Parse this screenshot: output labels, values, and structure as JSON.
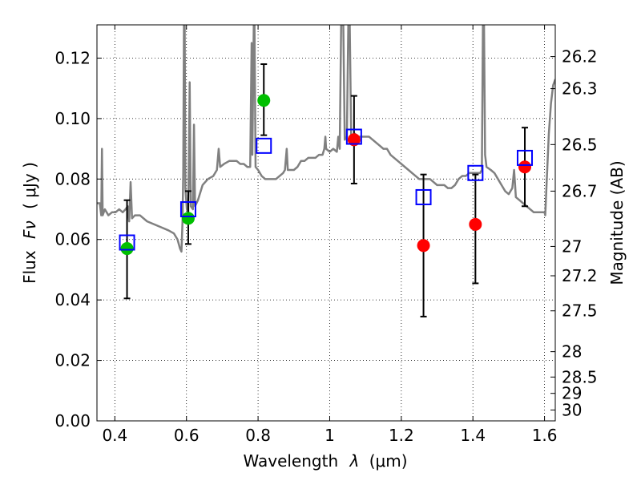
{
  "chart_data": {
    "type": "scatter",
    "xlabel_prefix": "Wavelength",
    "xlabel_symbol": "λ",
    "xlabel_unit": "(μm)",
    "ylabel_prefix": "Flux",
    "ylabel_symbol": "Fν",
    "ylabel_unit": "( μJy )",
    "y2label": "Magnitude (AB)",
    "xlim": [
      0.35,
      1.63
    ],
    "ylim": [
      0.0,
      0.131
    ],
    "grid": true,
    "x_ticks": [
      0.4,
      0.6,
      0.8,
      1.0,
      1.2,
      1.4,
      1.6
    ],
    "x_tick_labels": [
      "0.4",
      "0.6",
      "0.8",
      "1",
      "1.2",
      "1.4",
      "1.6"
    ],
    "y_ticks": [
      0.0,
      0.02,
      0.04,
      0.06,
      0.08,
      0.1,
      0.12
    ],
    "y_tick_labels": [
      "0.00",
      "0.02",
      "0.04",
      "0.06",
      "0.08",
      "0.10",
      "0.12"
    ],
    "y2_ticks": [
      {
        "label": "26.2",
        "flux": 0.1205
      },
      {
        "label": "26.3",
        "flux": 0.1099
      },
      {
        "label": "26.5",
        "flux": 0.0914
      },
      {
        "label": "26.7",
        "flux": 0.076
      },
      {
        "label": "27",
        "flux": 0.0577
      },
      {
        "label": "27.2",
        "flux": 0.048
      },
      {
        "label": "27.5",
        "flux": 0.0364
      },
      {
        "label": "28",
        "flux": 0.0229
      },
      {
        "label": "28.5",
        "flux": 0.0145
      },
      {
        "label": "29",
        "flux": 0.0091
      },
      {
        "label": "30",
        "flux": 0.0036
      }
    ],
    "series": [
      {
        "kind": "line",
        "color": "#808080",
        "points": [
          [
            0.35,
            0.072
          ],
          [
            0.358,
            0.072
          ],
          [
            0.362,
            0.068
          ],
          [
            0.364,
            0.09
          ],
          [
            0.366,
            0.068
          ],
          [
            0.372,
            0.07
          ],
          [
            0.382,
            0.068
          ],
          [
            0.392,
            0.069
          ],
          [
            0.402,
            0.069
          ],
          [
            0.412,
            0.07
          ],
          [
            0.422,
            0.069
          ],
          [
            0.43,
            0.07
          ],
          [
            0.436,
            0.071
          ],
          [
            0.44,
            0.066
          ],
          [
            0.444,
            0.079
          ],
          [
            0.448,
            0.067
          ],
          [
            0.456,
            0.068
          ],
          [
            0.47,
            0.068
          ],
          [
            0.49,
            0.066
          ],
          [
            0.51,
            0.065
          ],
          [
            0.53,
            0.064
          ],
          [
            0.55,
            0.063
          ],
          [
            0.565,
            0.062
          ],
          [
            0.575,
            0.06
          ],
          [
            0.582,
            0.057
          ],
          [
            0.586,
            0.056
          ],
          [
            0.589,
            0.066
          ],
          [
            0.591,
            0.082
          ],
          [
            0.593,
            0.131
          ],
          [
            0.595,
            0.131
          ],
          [
            0.597,
            0.077
          ],
          [
            0.601,
            0.07
          ],
          [
            0.605,
            0.069
          ],
          [
            0.609,
            0.112
          ],
          [
            0.612,
            0.071
          ],
          [
            0.618,
            0.07
          ],
          [
            0.621,
            0.098
          ],
          [
            0.624,
            0.071
          ],
          [
            0.632,
            0.073
          ],
          [
            0.645,
            0.078
          ],
          [
            0.66,
            0.08
          ],
          [
            0.675,
            0.081
          ],
          [
            0.685,
            0.083
          ],
          [
            0.69,
            0.09
          ],
          [
            0.694,
            0.084
          ],
          [
            0.705,
            0.085
          ],
          [
            0.72,
            0.086
          ],
          [
            0.74,
            0.086
          ],
          [
            0.75,
            0.085
          ],
          [
            0.76,
            0.085
          ],
          [
            0.77,
            0.084
          ],
          [
            0.778,
            0.084
          ],
          [
            0.782,
            0.125
          ],
          [
            0.784,
            0.088
          ],
          [
            0.788,
            0.131
          ],
          [
            0.79,
            0.131
          ],
          [
            0.793,
            0.084
          ],
          [
            0.8,
            0.083
          ],
          [
            0.81,
            0.081
          ],
          [
            0.82,
            0.08
          ],
          [
            0.83,
            0.08
          ],
          [
            0.84,
            0.08
          ],
          [
            0.85,
            0.08
          ],
          [
            0.86,
            0.081
          ],
          [
            0.87,
            0.082
          ],
          [
            0.875,
            0.083
          ],
          [
            0.88,
            0.09
          ],
          [
            0.883,
            0.083
          ],
          [
            0.89,
            0.083
          ],
          [
            0.9,
            0.083
          ],
          [
            0.91,
            0.084
          ],
          [
            0.92,
            0.086
          ],
          [
            0.93,
            0.086
          ],
          [
            0.94,
            0.087
          ],
          [
            0.95,
            0.087
          ],
          [
            0.96,
            0.087
          ],
          [
            0.97,
            0.088
          ],
          [
            0.98,
            0.088
          ],
          [
            0.985,
            0.09
          ],
          [
            0.988,
            0.094
          ],
          [
            0.99,
            0.09
          ],
          [
            1.0,
            0.089
          ],
          [
            1.01,
            0.09
          ],
          [
            1.02,
            0.089
          ],
          [
            1.024,
            0.094
          ],
          [
            1.028,
            0.09
          ],
          [
            1.032,
            0.131
          ],
          [
            1.038,
            0.131
          ],
          [
            1.042,
            0.093
          ],
          [
            1.048,
            0.094
          ],
          [
            1.052,
            0.131
          ],
          [
            1.056,
            0.131
          ],
          [
            1.06,
            0.094
          ],
          [
            1.07,
            0.095
          ],
          [
            1.08,
            0.094
          ],
          [
            1.09,
            0.094
          ],
          [
            1.1,
            0.094
          ],
          [
            1.11,
            0.094
          ],
          [
            1.12,
            0.093
          ],
          [
            1.13,
            0.092
          ],
          [
            1.14,
            0.091
          ],
          [
            1.15,
            0.09
          ],
          [
            1.16,
            0.09
          ],
          [
            1.17,
            0.088
          ],
          [
            1.18,
            0.087
          ],
          [
            1.19,
            0.086
          ],
          [
            1.2,
            0.085
          ],
          [
            1.21,
            0.084
          ],
          [
            1.22,
            0.083
          ],
          [
            1.23,
            0.082
          ],
          [
            1.24,
            0.081
          ],
          [
            1.25,
            0.08
          ],
          [
            1.26,
            0.08
          ],
          [
            1.27,
            0.08
          ],
          [
            1.28,
            0.08
          ],
          [
            1.29,
            0.079
          ],
          [
            1.3,
            0.078
          ],
          [
            1.31,
            0.078
          ],
          [
            1.32,
            0.078
          ],
          [
            1.33,
            0.077
          ],
          [
            1.34,
            0.077
          ],
          [
            1.35,
            0.078
          ],
          [
            1.36,
            0.08
          ],
          [
            1.37,
            0.081
          ],
          [
            1.38,
            0.081
          ],
          [
            1.39,
            0.082
          ],
          [
            1.4,
            0.082
          ],
          [
            1.41,
            0.082
          ],
          [
            1.42,
            0.082
          ],
          [
            1.425,
            0.083
          ],
          [
            1.428,
            0.131
          ],
          [
            1.431,
            0.131
          ],
          [
            1.434,
            0.088
          ],
          [
            1.438,
            0.084
          ],
          [
            1.45,
            0.083
          ],
          [
            1.46,
            0.082
          ],
          [
            1.47,
            0.08
          ],
          [
            1.48,
            0.078
          ],
          [
            1.49,
            0.076
          ],
          [
            1.5,
            0.075
          ],
          [
            1.51,
            0.077
          ],
          [
            1.515,
            0.083
          ],
          [
            1.52,
            0.074
          ],
          [
            1.53,
            0.073
          ],
          [
            1.54,
            0.072
          ],
          [
            1.55,
            0.071
          ],
          [
            1.56,
            0.07
          ],
          [
            1.57,
            0.069
          ],
          [
            1.58,
            0.069
          ],
          [
            1.59,
            0.069
          ],
          [
            1.6,
            0.069
          ],
          [
            1.602,
            0.068
          ],
          [
            1.606,
            0.079
          ],
          [
            1.612,
            0.095
          ],
          [
            1.618,
            0.105
          ],
          [
            1.624,
            0.111
          ],
          [
            1.63,
            0.113
          ]
        ]
      },
      {
        "kind": "scatter",
        "marker": "circle",
        "color": "#00bf00",
        "points": [
          [
            0.434,
            0.057
          ],
          [
            0.605,
            0.067
          ],
          [
            0.816,
            0.106
          ]
        ]
      },
      {
        "kind": "scatter",
        "marker": "circle",
        "color": "#ff0000",
        "points": [
          [
            1.068,
            0.093
          ],
          [
            1.262,
            0.058
          ],
          [
            1.407,
            0.065
          ],
          [
            1.545,
            0.084
          ]
        ]
      },
      {
        "kind": "scatter",
        "marker": "square-open",
        "color": "#0000ff",
        "points": [
          [
            0.434,
            0.059
          ],
          [
            0.605,
            0.07
          ],
          [
            0.816,
            0.091
          ],
          [
            1.068,
            0.094
          ],
          [
            1.262,
            0.074
          ],
          [
            1.407,
            0.082
          ],
          [
            1.545,
            0.087
          ]
        ]
      },
      {
        "kind": "errorbar",
        "color": "#000000",
        "bars": [
          {
            "x": 0.434,
            "low": 0.0405,
            "high": 0.073
          },
          {
            "x": 0.605,
            "low": 0.0585,
            "high": 0.076
          },
          {
            "x": 0.816,
            "low": 0.0945,
            "high": 0.118
          },
          {
            "x": 1.068,
            "low": 0.0785,
            "high": 0.1075
          },
          {
            "x": 1.262,
            "low": 0.0345,
            "high": 0.0815
          },
          {
            "x": 1.407,
            "low": 0.0455,
            "high": 0.0815
          },
          {
            "x": 1.545,
            "low": 0.071,
            "high": 0.097
          }
        ]
      }
    ]
  }
}
